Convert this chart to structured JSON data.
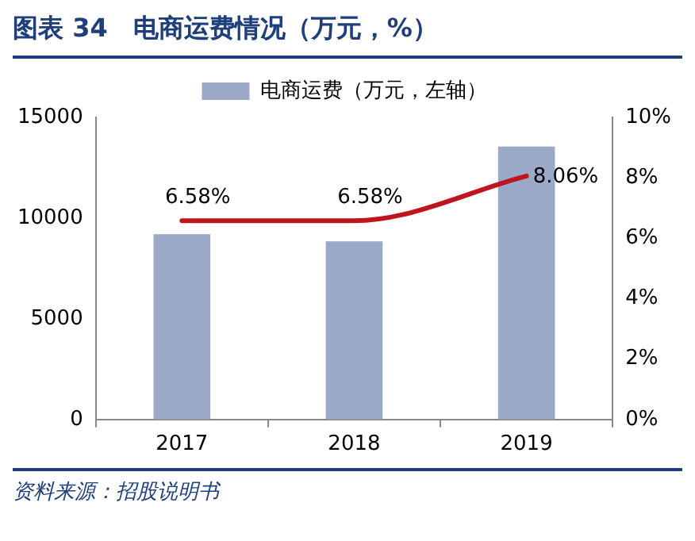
{
  "chart_data": {
    "type": "bar",
    "title": "图表 34　电商运费情况（万元，%）",
    "annotations": [
      "资料来源：招股说明书"
    ],
    "categories": [
      "2017",
      "2018",
      "2019"
    ],
    "series": [
      {
        "name": "电商运费（万元，左轴）",
        "color": "#9ba9c9",
        "values": [
          9200,
          8850,
          13550
        ]
      },
      {
        "type": "line",
        "axis": "y2",
        "color": "#c0141e",
        "values": [
          6.58,
          6.58,
          8.06
        ],
        "value_labels": [
          "6.58%",
          "6.58%",
          "8.06%"
        ]
      }
    ],
    "ylim": [
      0,
      15000
    ],
    "yticks": [
      0,
      5000,
      10000,
      15000
    ],
    "y2lim": [
      0,
      10
    ],
    "y2ticks": [
      {
        "value": 0,
        "label": "0%"
      },
      {
        "value": 2,
        "label": "2%"
      },
      {
        "value": 4,
        "label": "4%"
      },
      {
        "value": 6,
        "label": "6%"
      },
      {
        "value": 8,
        "label": "8%"
      },
      {
        "value": 10,
        "label": "10%"
      }
    ],
    "legend": "top",
    "grid": false
  }
}
